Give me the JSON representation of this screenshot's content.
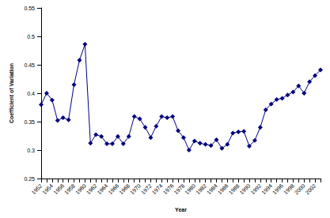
{
  "chart_data": {
    "type": "line",
    "x_label": "Year",
    "y_label": "Coefficient of Variation",
    "categories": [
      "1952",
      null,
      "1954",
      null,
      "1956",
      null,
      "1958",
      null,
      "1960",
      null,
      "1962",
      null,
      "1964",
      null,
      "1966",
      null,
      "1968",
      null,
      "1970",
      null,
      "1972",
      null,
      "1974",
      null,
      "1976",
      null,
      "1978",
      null,
      "1980",
      null,
      "1982",
      null,
      "1984",
      null,
      "1986",
      null,
      "1988",
      null,
      "1990",
      null,
      "1992",
      null,
      "1994",
      null,
      "1996",
      null,
      "1998",
      null,
      "2000",
      null,
      "2002",
      null
    ],
    "values": [
      0.38,
      0.4,
      0.388,
      0.352,
      0.357,
      0.353,
      0.415,
      0.458,
      0.486,
      0.312,
      0.327,
      0.324,
      0.311,
      0.311,
      0.324,
      0.311,
      0.324,
      0.359,
      0.355,
      0.34,
      0.322,
      0.342,
      0.359,
      0.357,
      0.359,
      0.334,
      0.322,
      0.3,
      0.316,
      0.312,
      0.31,
      0.308,
      0.318,
      0.303,
      0.31,
      0.33,
      0.332,
      0.333,
      0.307,
      0.317,
      0.34,
      0.371,
      0.381,
      0.389,
      0.391,
      0.397,
      0.402,
      0.413,
      0.4,
      0.42,
      0.431,
      0.441
    ],
    "color": "#000080",
    "marker": "diamond",
    "ylim": [
      0.25,
      0.55
    ],
    "yticks": [
      0.25,
      0.3,
      0.35,
      0.4,
      0.45,
      0.5,
      0.55
    ],
    "grid": false
  }
}
